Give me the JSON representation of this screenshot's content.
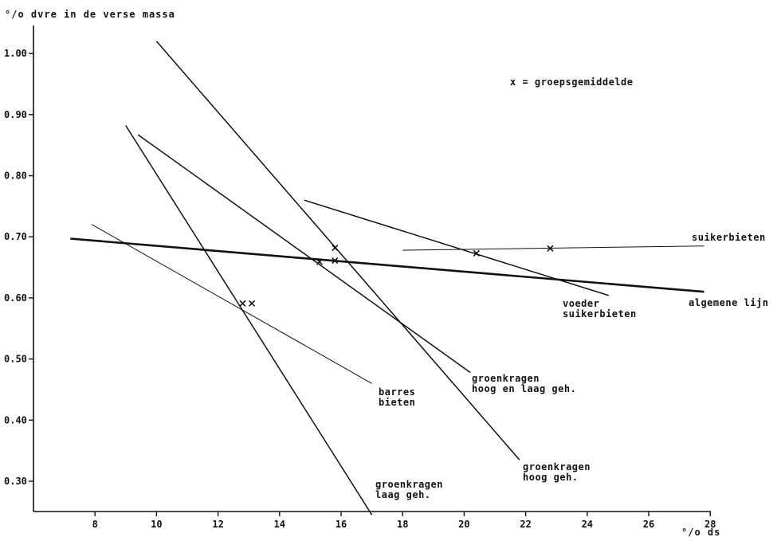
{
  "chart_data": {
    "type": "line",
    "title": "",
    "ylabel": "°/o dvre in de verse massa",
    "xlabel": "°/o ds",
    "legend_note": "x = groepsgemiddelde",
    "xlim": [
      6,
      28
    ],
    "ylim": [
      0.25,
      1.05
    ],
    "x_ticks": [
      8,
      10,
      12,
      14,
      16,
      18,
      20,
      22,
      24,
      26,
      28
    ],
    "x_tick_labels": [
      "8",
      "10",
      "12",
      "14",
      "16",
      "18",
      "20",
      "22",
      "24",
      "26",
      "28"
    ],
    "y_ticks": [
      0.3,
      0.4,
      0.5,
      0.6,
      0.7,
      0.8,
      0.9,
      1.0
    ],
    "y_tick_labels": [
      "0.30",
      "0.40",
      "0.50",
      "0.60",
      "0.70",
      "0.80",
      "0.90",
      "1.00"
    ],
    "grid": false,
    "series": [
      {
        "name": "suikerbieten",
        "label_lines": [
          "suikerbieten"
        ],
        "x": [
          18.0,
          27.8
        ],
        "y": [
          0.678,
          0.685
        ],
        "mean": [
          22.8,
          0.681
        ],
        "weight": "thin"
      },
      {
        "name": "algemene lijn",
        "label_lines": [
          "algemene lijn"
        ],
        "x": [
          7.2,
          27.8
        ],
        "y": [
          0.697,
          0.61
        ],
        "weight": "thick"
      },
      {
        "name": "voeder suikerbieten",
        "label_lines": [
          "voeder",
          "suikerbieten"
        ],
        "x": [
          14.8,
          24.7
        ],
        "y": [
          0.76,
          0.604
        ],
        "mean": [
          20.4,
          0.673
        ],
        "weight": "medium"
      },
      {
        "name": "groenkragen hoog en laag geh.",
        "label_lines": [
          "groenkragen",
          "hoog en laag geh."
        ],
        "x": [
          9.4,
          20.2
        ],
        "y": [
          0.867,
          0.478
        ],
        "mean": [
          15.3,
          0.659
        ],
        "weight": "medium"
      },
      {
        "name": "groenkragen hoog geh.",
        "label_lines": [
          "groenkragen",
          "hoog geh."
        ],
        "x": [
          10.0,
          21.8
        ],
        "y": [
          1.02,
          0.335
        ],
        "mean": [
          15.8,
          0.682
        ],
        "weight": "medium"
      },
      {
        "name": "groenkragen laag geh.",
        "label_lines": [
          "groenkragen",
          "laag geh."
        ],
        "x": [
          9.0,
          17.0
        ],
        "y": [
          0.882,
          0.245
        ],
        "mean": [
          13.1,
          0.591
        ],
        "weight": "medium"
      },
      {
        "name": "barres bieten",
        "label_lines": [
          "barres",
          "bieten"
        ],
        "x": [
          7.9,
          17.0
        ],
        "y": [
          0.72,
          0.46
        ],
        "mean": [
          12.8,
          0.591
        ],
        "weight": "thin"
      }
    ],
    "extra_means": [
      [
        15.8,
        0.661
      ]
    ]
  }
}
